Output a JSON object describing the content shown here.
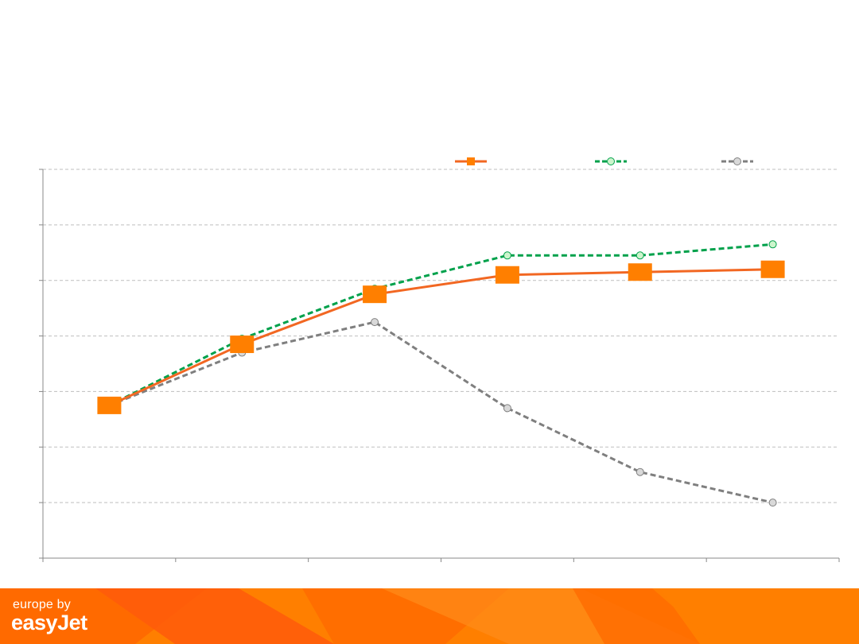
{
  "chart_data": {
    "type": "line",
    "title": "",
    "xlabel": "",
    "ylabel": "",
    "x": [
      1,
      2,
      3,
      4,
      5,
      6
    ],
    "xlim": [
      0.5,
      6.5
    ],
    "ylim": [
      0,
      7
    ],
    "grid": "horizontal dashed",
    "legend_position": "top-right",
    "series": [
      {
        "values": [
          2.75,
          3.85,
          4.75,
          5.1,
          5.15,
          5.2
        ],
        "color": "#F26722",
        "marker": "square",
        "marker_color": "#FF7F00",
        "dash": "solid"
      },
      {
        "values": [
          2.75,
          3.95,
          4.85,
          5.45,
          5.45,
          5.65
        ],
        "color": "#00A14B",
        "marker": "circle",
        "marker_color": "#CCF5CC",
        "dash": "dashed"
      },
      {
        "values": [
          2.75,
          3.7,
          4.25,
          2.7,
          1.55,
          1.0
        ],
        "color": "#7F7F7F",
        "marker": "circle",
        "marker_color": "#D9D9D9",
        "dash": "dashed"
      }
    ]
  },
  "footer": {
    "brand_top": "europe by",
    "brand_main": "easyJet",
    "colors": [
      "#FF6A00",
      "#FF7F00",
      "#FF5500"
    ]
  }
}
